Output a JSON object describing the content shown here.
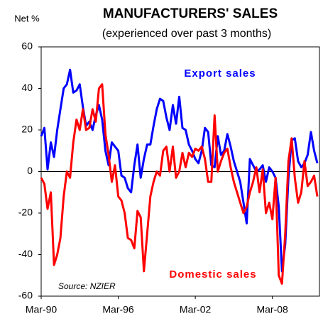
{
  "chart_data": {
    "type": "line",
    "title": "MANUFACTURERS' SALES",
    "subtitle": "(experienced over past 3 months)",
    "y_label": "Net %",
    "annotations": [
      "Export sales",
      "Domestic sales",
      "Source: NZIER"
    ],
    "categories": [
      "Mar-90",
      null,
      null,
      null,
      null,
      null,
      null,
      null,
      null,
      null,
      null,
      null,
      null,
      null,
      null,
      null,
      null,
      null,
      null,
      null,
      null,
      null,
      null,
      null,
      "Mar-96",
      null,
      null,
      null,
      null,
      null,
      null,
      null,
      null,
      null,
      null,
      null,
      null,
      null,
      null,
      null,
      null,
      null,
      null,
      null,
      null,
      null,
      null,
      null,
      "Mar-02",
      null,
      null,
      null,
      null,
      null,
      null,
      null,
      null,
      null,
      null,
      null,
      null,
      null,
      null,
      null,
      null,
      null,
      null,
      null,
      null,
      null,
      null,
      null,
      "Mar-08",
      null,
      null,
      null,
      null,
      null,
      null,
      null,
      null,
      null,
      null,
      null,
      null,
      null,
      null
    ],
    "series": [
      {
        "name": "Export sales",
        "color": "#0000ff",
        "values": [
          17,
          21,
          1,
          14,
          7,
          20,
          30,
          40,
          42,
          49,
          38,
          39,
          42,
          31,
          22,
          24,
          20,
          27,
          32,
          25,
          10,
          3,
          14,
          12,
          10,
          -2,
          -3,
          -8,
          -10,
          3,
          13,
          -3,
          6,
          13,
          13,
          22,
          30,
          35,
          34,
          26,
          20,
          32,
          23,
          36,
          21,
          20,
          13,
          10,
          6,
          4,
          10,
          21,
          19,
          3,
          2,
          17,
          8,
          10,
          18,
          12,
          5,
          0,
          -5,
          -15,
          -25,
          6,
          3,
          0,
          1,
          3,
          -5,
          2,
          0,
          -3,
          -17,
          -48,
          -35,
          -3,
          15,
          16,
          5,
          2,
          4,
          8,
          19,
          10,
          4
        ]
      },
      {
        "name": "Domestic sales",
        "color": "#ff0000",
        "values": [
          -3,
          -6,
          -18,
          -10,
          -45,
          -40,
          -32,
          -12,
          0,
          -3,
          14,
          25,
          20,
          30,
          20,
          21,
          30,
          24,
          40,
          42,
          18,
          8,
          -5,
          3,
          -12,
          -14,
          -20,
          -32,
          -33,
          -37,
          -19,
          -22,
          -48,
          -30,
          -12,
          -5,
          0,
          -2,
          10,
          12,
          0,
          12,
          -3,
          0,
          9,
          2,
          9,
          7,
          11,
          10,
          12,
          6,
          -5,
          -5,
          27,
          0,
          5,
          9,
          11,
          2,
          -5,
          -10,
          -15,
          -20,
          -17,
          -10,
          -5,
          2,
          -10,
          1,
          -20,
          -15,
          -23,
          -3,
          -50,
          -54,
          -30,
          5,
          16,
          -3,
          -15,
          -10,
          5,
          -7,
          -5,
          -2,
          -12
        ]
      }
    ],
    "ylim": [
      -60,
      60
    ],
    "yticks": [
      -60,
      -40,
      -20,
      0,
      20,
      40,
      60
    ]
  }
}
